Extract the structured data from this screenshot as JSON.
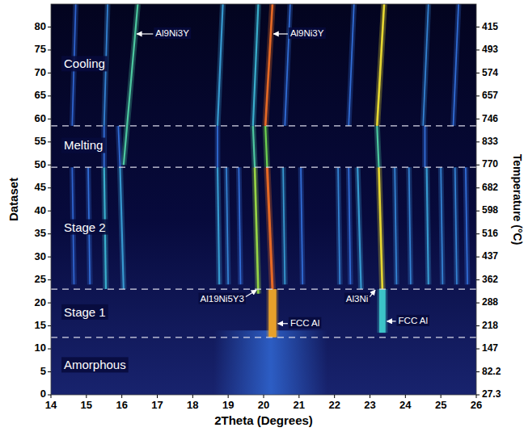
{
  "chart_data": {
    "type": "heatmap",
    "x_label": "2Theta (Degrees)",
    "y_label": "Dataset",
    "xlim": [
      14,
      26
    ],
    "xticks": [
      14,
      15,
      16,
      17,
      18,
      19,
      20,
      21,
      22,
      23,
      24,
      25,
      26
    ],
    "ylim": [
      0,
      85
    ],
    "yticks": [
      0,
      5,
      10,
      15,
      20,
      25,
      30,
      35,
      40,
      45,
      50,
      55,
      60,
      65,
      70,
      75,
      80
    ],
    "temperature_axis": {
      "title": "Temperature (°C)",
      "datasets": [
        0,
        5,
        10,
        15,
        20,
        25,
        30,
        35,
        40,
        45,
        50,
        55,
        60,
        65,
        70,
        75,
        80
      ],
      "values": [
        27.3,
        82.2,
        147,
        218,
        288,
        362,
        437,
        516,
        598,
        682,
        770,
        833,
        746,
        657,
        574,
        493,
        415
      ]
    },
    "regions": [
      {
        "label": "Amorphous",
        "start": 0,
        "end": 12.5
      },
      {
        "label": "Stage 1",
        "start": 12.5,
        "end": 23
      },
      {
        "label": "Stage 2",
        "start": 23,
        "end": 49.5
      },
      {
        "label": "Melting",
        "start": 49.5,
        "end": 58.5
      },
      {
        "label": "Cooling",
        "start": 58.5,
        "end": 85
      }
    ],
    "diffuse": [
      {
        "x": 20.2,
        "width": 3.2,
        "y": [
          0,
          14
        ],
        "intensity": 0.3
      }
    ],
    "peaks": [
      {
        "x": [
          14.65,
          14.6
        ],
        "y": [
          24,
          49.5
        ],
        "width": 0.04,
        "intensity": 0.3
      },
      {
        "x": [
          15.1,
          15.05
        ],
        "y": [
          24,
          49.5
        ],
        "width": 0.04,
        "intensity": 0.35
      },
      {
        "x": [
          15.55,
          15.5
        ],
        "y": [
          23,
          49.5
        ],
        "width": 0.05,
        "intensity": 0.5
      },
      {
        "x": [
          16.05,
          15.95
        ],
        "y": [
          23,
          49.5
        ],
        "width": 0.05,
        "intensity": 0.45
      },
      {
        "x": [
          18.75,
          18.7
        ],
        "y": [
          24,
          49.5
        ],
        "width": 0.05,
        "intensity": 0.45
      },
      {
        "x": [
          19.0,
          18.95
        ],
        "y": [
          24,
          49.5
        ],
        "width": 0.04,
        "intensity": 0.4
      },
      {
        "x": [
          19.35,
          19.3
        ],
        "y": [
          24,
          49.5
        ],
        "width": 0.04,
        "intensity": 0.35
      },
      {
        "x": [
          19.85,
          19.75
        ],
        "y": [
          22,
          49.5
        ],
        "width": 0.06,
        "intensity": 0.75
      },
      {
        "x": [
          20.25,
          20.1
        ],
        "y": [
          23,
          49.5
        ],
        "width": 0.07,
        "intensity": 0.95
      },
      {
        "x": [
          20.6,
          20.55
        ],
        "y": [
          24,
          49.5
        ],
        "width": 0.04,
        "intensity": 0.45
      },
      {
        "x": [
          21.1,
          21.05
        ],
        "y": [
          24,
          49.5
        ],
        "width": 0.04,
        "intensity": 0.35
      },
      {
        "x": [
          22.15,
          22.1
        ],
        "y": [
          24,
          49.5
        ],
        "width": 0.04,
        "intensity": 0.4
      },
      {
        "x": [
          22.45,
          22.4
        ],
        "y": [
          24,
          49.5
        ],
        "width": 0.04,
        "intensity": 0.35
      },
      {
        "x": [
          22.75,
          22.65
        ],
        "y": [
          23,
          49.5
        ],
        "width": 0.05,
        "intensity": 0.45
      },
      {
        "x": [
          23.35,
          23.25
        ],
        "y": [
          23,
          49.5
        ],
        "width": 0.06,
        "intensity": 0.85
      },
      {
        "x": [
          23.75,
          23.7
        ],
        "y": [
          24,
          49.5
        ],
        "width": 0.04,
        "intensity": 0.4
      },
      {
        "x": [
          24.15,
          24.1
        ],
        "y": [
          24,
          49.5
        ],
        "width": 0.04,
        "intensity": 0.4
      },
      {
        "x": [
          24.65,
          24.6
        ],
        "y": [
          24,
          49.5
        ],
        "width": 0.05,
        "intensity": 0.45
      },
      {
        "x": [
          25.05,
          25.0
        ],
        "y": [
          24,
          49.5
        ],
        "width": 0.04,
        "intensity": 0.4
      },
      {
        "x": [
          25.45,
          25.4
        ],
        "y": [
          24,
          49.5
        ],
        "width": 0.04,
        "intensity": 0.4
      },
      {
        "x": [
          25.75,
          25.7
        ],
        "y": [
          24,
          49.5
        ],
        "width": 0.04,
        "intensity": 0.35
      },
      {
        "x": [
          20.25,
          20.25
        ],
        "y": [
          12.5,
          23
        ],
        "width": 0.22,
        "intensity": 0.9
      },
      {
        "x": [
          23.35,
          23.35
        ],
        "y": [
          13.5,
          23
        ],
        "width": 0.18,
        "intensity": 0.55
      },
      {
        "x": [
          15.5,
          15.5
        ],
        "y": [
          49.5,
          58.5
        ],
        "width": 0.04,
        "intensity": 0.35
      },
      {
        "x": [
          15.95,
          15.9
        ],
        "y": [
          49.5,
          58.5
        ],
        "width": 0.04,
        "intensity": 0.35
      },
      {
        "x": [
          18.7,
          18.7
        ],
        "y": [
          49.5,
          58.5
        ],
        "width": 0.04,
        "intensity": 0.35
      },
      {
        "x": [
          19.75,
          19.7
        ],
        "y": [
          49.5,
          58.5
        ],
        "width": 0.05,
        "intensity": 0.6
      },
      {
        "x": [
          20.1,
          20.05
        ],
        "y": [
          49.5,
          58.5
        ],
        "width": 0.05,
        "intensity": 0.7
      },
      {
        "x": [
          23.25,
          23.2
        ],
        "y": [
          49.5,
          58.5
        ],
        "width": 0.05,
        "intensity": 0.6
      },
      {
        "x": [
          24.55,
          24.55
        ],
        "y": [
          49.5,
          58.5
        ],
        "width": 0.04,
        "intensity": 0.35
      },
      {
        "x": [
          16.05,
          16.45
        ],
        "y": [
          50,
          85
        ],
        "width": 0.05,
        "intensity": 0.6
      },
      {
        "x": [
          15.5,
          15.6
        ],
        "y": [
          58.5,
          85
        ],
        "width": 0.04,
        "intensity": 0.4
      },
      {
        "x": [
          18.7,
          18.85
        ],
        "y": [
          58.5,
          85
        ],
        "width": 0.05,
        "intensity": 0.45
      },
      {
        "x": [
          19.7,
          19.85
        ],
        "y": [
          58.5,
          85
        ],
        "width": 0.05,
        "intensity": 0.5
      },
      {
        "x": [
          20.05,
          20.25
        ],
        "y": [
          58.5,
          85
        ],
        "width": 0.06,
        "intensity": 0.95
      },
      {
        "x": [
          20.6,
          20.75
        ],
        "y": [
          58.5,
          85
        ],
        "width": 0.04,
        "intensity": 0.35
      },
      {
        "x": [
          22.4,
          22.55
        ],
        "y": [
          58.5,
          85
        ],
        "width": 0.04,
        "intensity": 0.35
      },
      {
        "x": [
          23.2,
          23.4
        ],
        "y": [
          58.5,
          85
        ],
        "width": 0.06,
        "intensity": 0.85
      },
      {
        "x": [
          24.5,
          24.65
        ],
        "y": [
          58.5,
          85
        ],
        "width": 0.04,
        "intensity": 0.4
      },
      {
        "x": [
          25.35,
          25.5
        ],
        "y": [
          58.5,
          85
        ],
        "width": 0.04,
        "intensity": 0.35
      },
      {
        "x": [
          14.6,
          14.7
        ],
        "y": [
          58.5,
          85
        ],
        "width": 0.04,
        "intensity": 0.3
      }
    ],
    "annotations": [
      {
        "text": "Al9Ni3Y",
        "x": 16.95,
        "y": 78.5,
        "xy": [
          16.42,
          78.5
        ]
      },
      {
        "text": "Al9Ni3Y",
        "x": 20.75,
        "y": 78.5,
        "xy": [
          20.28,
          78.5
        ]
      },
      {
        "text": "Al19Ni5Y3",
        "x": 19.45,
        "y": 20.8,
        "xy": [
          19.8,
          22.8
        ]
      },
      {
        "text": "FCC Al",
        "x": 20.75,
        "y": 15.5,
        "xy": [
          20.4,
          15.5
        ]
      },
      {
        "text": "Al3Ni",
        "x": 22.95,
        "y": 20.8,
        "xy": [
          23.15,
          22.8
        ]
      },
      {
        "text": "FCC Al",
        "x": 23.8,
        "y": 16,
        "xy": [
          23.48,
          16
        ]
      }
    ]
  }
}
